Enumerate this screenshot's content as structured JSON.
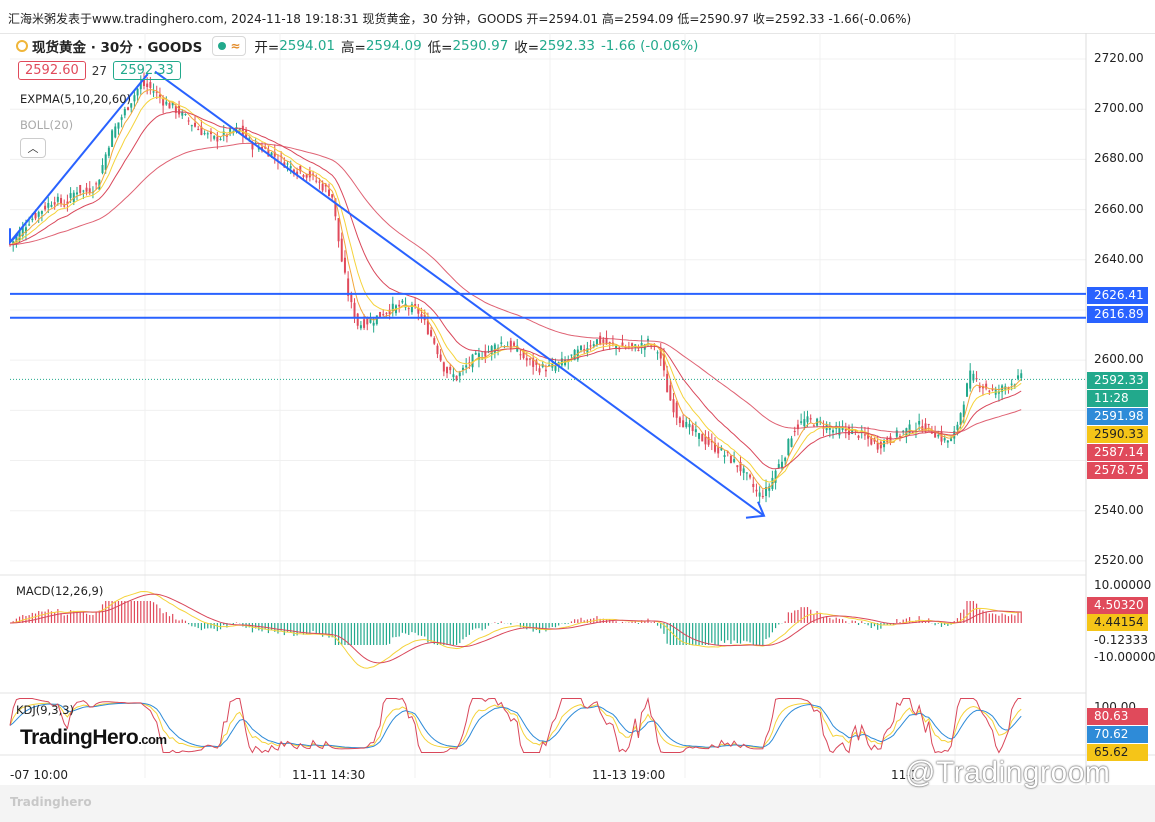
{
  "topbar": {
    "text": "汇海米粥发表于www.tradinghero.com, 2024-11-18 19:18:31 现货黄金，30 分钟，GOODS 开=2594.01 高=2594.09 低=2590.97 收=2592.33 -1.66(-0.06%)"
  },
  "legend": {
    "symbol": "现货黄金 · 30分 · GOODS",
    "open_label": "开=",
    "open": "2594.01",
    "high_label": "高=",
    "high": "2594.09",
    "low_label": "低=",
    "low": "2590.97",
    "close_label": "收=",
    "close": "2592.33",
    "change": "-1.66 (-0.06%)",
    "bid": "2592.60",
    "spread": "27",
    "ask": "2592.33"
  },
  "indicators": {
    "expma": "EXPMA(5,10,20,60)",
    "boll": "BOLL(20)",
    "macd": "MACD(12,26,9)",
    "kdj": "KDJ(9,3,3)"
  },
  "branding": {
    "logo": "TradingHero",
    "logo_suffix": ".com",
    "logo_small": "Tradinghero",
    "watermark": "@Tradingroom"
  },
  "colors": {
    "up": "#22a98c",
    "down": "#e04a5b",
    "line_blue": "#2962ff",
    "ema_orange": "#f2a73b",
    "ema_yellow": "#f5d33b",
    "ema_red": "#d9475a",
    "ema_blue": "#2e8bd8"
  },
  "chart_data": {
    "type": "candlestick",
    "symbol": "现货黄金",
    "timeframe": "30分",
    "price_axis": {
      "ticks": [
        "2720.00",
        "2700.00",
        "2680.00",
        "2660.00",
        "2640.00",
        "2620.00",
        "2600.00",
        "2580.00",
        "2560.00",
        "2540.00",
        "2520.00"
      ],
      "range": [
        2514,
        2726
      ]
    },
    "time_axis": [
      "-07 10:00",
      "11-11 14:30",
      "11-13 19:00",
      "11-1"
    ],
    "horizontal_lines": [
      2626.41,
      2616.89
    ],
    "last_price": 2592.33,
    "price_tags": [
      {
        "text": "2626.41",
        "bg": "#2962ff",
        "fg": "#ffffff"
      },
      {
        "text": "2616.89",
        "bg": "#2962ff",
        "fg": "#ffffff"
      },
      {
        "text": "2592.33",
        "bg": "#22a98c",
        "fg": "#ffffff"
      },
      {
        "text": "11:28",
        "bg": "#22a98c",
        "fg": "#ffffff"
      },
      {
        "text": "2591.98",
        "bg": "#2e8bd8",
        "fg": "#ffffff"
      },
      {
        "text": "2590.33",
        "bg": "#f5c518",
        "fg": "#222222"
      },
      {
        "text": "2587.14",
        "bg": "#e04a5b",
        "fg": "#ffffff"
      },
      {
        "text": "2578.75",
        "bg": "#e04a5b",
        "fg": "#ffffff"
      }
    ],
    "close_path": [
      [
        0,
        2646
      ],
      [
        12,
        2655
      ],
      [
        22,
        2660
      ],
      [
        30,
        2664
      ],
      [
        38,
        2662
      ],
      [
        46,
        2668
      ],
      [
        52,
        2667
      ],
      [
        60,
        2670
      ],
      [
        70,
        2690
      ],
      [
        80,
        2700
      ],
      [
        90,
        2710
      ],
      [
        98,
        2708
      ],
      [
        106,
        2703
      ],
      [
        114,
        2700
      ],
      [
        122,
        2696
      ],
      [
        130,
        2692
      ],
      [
        140,
        2688
      ],
      [
        150,
        2690
      ],
      [
        158,
        2692
      ],
      [
        166,
        2686
      ],
      [
        176,
        2684
      ],
      [
        186,
        2680
      ],
      [
        196,
        2676
      ],
      [
        206,
        2674
      ],
      [
        214,
        2670
      ],
      [
        222,
        2666
      ],
      [
        228,
        2642
      ],
      [
        234,
        2624
      ],
      [
        240,
        2614
      ],
      [
        250,
        2616
      ],
      [
        260,
        2620
      ],
      [
        272,
        2622
      ],
      [
        282,
        2619
      ],
      [
        292,
        2608
      ],
      [
        300,
        2596
      ],
      [
        308,
        2593
      ],
      [
        318,
        2600
      ],
      [
        328,
        2603
      ],
      [
        338,
        2607
      ],
      [
        348,
        2605
      ],
      [
        356,
        2600
      ],
      [
        364,
        2597
      ],
      [
        374,
        2597
      ],
      [
        384,
        2600
      ],
      [
        394,
        2604
      ],
      [
        404,
        2608
      ],
      [
        414,
        2606
      ],
      [
        424,
        2605
      ],
      [
        432,
        2605
      ],
      [
        440,
        2607
      ],
      [
        448,
        2603
      ],
      [
        454,
        2586
      ],
      [
        460,
        2578
      ],
      [
        466,
        2574
      ],
      [
        474,
        2570
      ],
      [
        484,
        2566
      ],
      [
        494,
        2562
      ],
      [
        502,
        2558
      ],
      [
        510,
        2552
      ],
      [
        516,
        2546
      ],
      [
        522,
        2548
      ],
      [
        528,
        2556
      ],
      [
        534,
        2562
      ],
      [
        540,
        2572
      ],
      [
        548,
        2576
      ],
      [
        558,
        2575
      ],
      [
        568,
        2572
      ],
      [
        578,
        2572
      ],
      [
        588,
        2570
      ],
      [
        598,
        2566
      ],
      [
        608,
        2569
      ],
      [
        618,
        2572
      ],
      [
        628,
        2574
      ],
      [
        636,
        2572
      ],
      [
        644,
        2568
      ],
      [
        650,
        2568
      ],
      [
        656,
        2580
      ],
      [
        662,
        2594
      ],
      [
        670,
        2590
      ],
      [
        680,
        2587
      ],
      [
        690,
        2591
      ],
      [
        698,
        2593
      ]
    ],
    "ema_lines": [
      {
        "name": "EXPMA5",
        "color": "#f2a73b"
      },
      {
        "name": "EXPMA10",
        "color": "#f5d33b"
      },
      {
        "name": "EXPMA20",
        "color": "#d9475a"
      },
      {
        "name": "EXPMA60",
        "color": "#2e8bd8"
      }
    ],
    "trend_lines": [
      {
        "from": [
          0,
          2647
        ],
        "to": [
          95,
          2714
        ]
      },
      {
        "from": [
          100,
          2715
        ],
        "to": [
          520,
          2538
        ]
      }
    ],
    "macd": {
      "ticks": [
        "10.00000",
        "-10.00000"
      ],
      "tags": [
        {
          "text": "4.50320",
          "bg": "#e04a5b",
          "fg": "#ffffff"
        },
        {
          "text": "4.44154",
          "bg": "#f5c518",
          "fg": "#222222"
        },
        {
          "text": "-0.12333",
          "bg": "",
          "fg": "#222222"
        }
      ]
    },
    "kdj": {
      "tick": "100.00",
      "tags": [
        {
          "text": "80.63",
          "bg": "#e04a5b",
          "fg": "#ffffff"
        },
        {
          "text": "70.62",
          "bg": "#2e8bd8",
          "fg": "#ffffff"
        },
        {
          "text": "65.62",
          "bg": "#f5c518",
          "fg": "#222222"
        }
      ]
    }
  }
}
